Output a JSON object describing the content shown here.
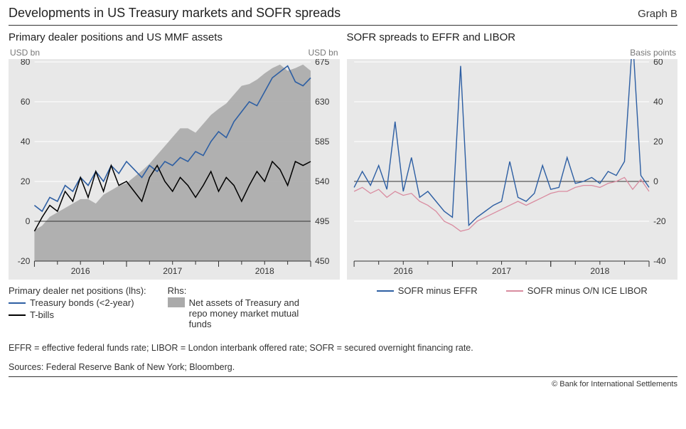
{
  "header": {
    "title": "Developments in US Treasury markets and SOFR spreads",
    "graph_label": "Graph B"
  },
  "colors": {
    "plot_bg": "#e8e8e8",
    "grid": "#ffffff",
    "zero_line": "#333333",
    "tick": "#333333",
    "text": "#333333",
    "axis_label": "#777777",
    "series_blue": "#2e5fa3",
    "series_black": "#000000",
    "series_pink": "#d98ca0",
    "area_gray": "#aaaaaa"
  },
  "typography": {
    "title_fontsize": 18,
    "subtitle_fontsize": 15,
    "tick_fontsize": 12,
    "legend_fontsize": 13,
    "footnote_fontsize": 12.5
  },
  "left_chart": {
    "subtitle": "Primary dealer positions and US MMF assets",
    "lhs_label": "USD bn",
    "rhs_label": "USD bn",
    "x_ticks": [
      "2016",
      "2017",
      "2018"
    ],
    "x_minor_ticks_per_year": 4,
    "lhs": {
      "min": -20,
      "max": 80,
      "ticks": [
        -20,
        0,
        20,
        40,
        60,
        80
      ]
    },
    "rhs": {
      "min": 450,
      "max": 675,
      "ticks": [
        450,
        495,
        540,
        585,
        630,
        675
      ]
    },
    "area_rhs": {
      "name": "Net assets of Treasury and repo money market mutual funds",
      "color": "#aaaaaa",
      "values": [
        485,
        490,
        500,
        505,
        510,
        515,
        520,
        520,
        515,
        525,
        530,
        535,
        538,
        545,
        552,
        560,
        570,
        580,
        590,
        600,
        600,
        595,
        605,
        615,
        622,
        628,
        638,
        648,
        650,
        655,
        662,
        668,
        672,
        665,
        668,
        672,
        665
      ]
    },
    "line_blue_lhs": {
      "name": "Treasury bonds (<2-year)",
      "color": "#2e5fa3",
      "line_width": 1.6,
      "values": [
        8,
        5,
        12,
        10,
        18,
        15,
        22,
        18,
        25,
        20,
        28,
        24,
        30,
        26,
        22,
        28,
        25,
        30,
        28,
        32,
        30,
        35,
        33,
        40,
        45,
        42,
        50,
        55,
        60,
        58,
        65,
        72,
        75,
        78,
        70,
        68,
        72
      ]
    },
    "line_black_lhs": {
      "name": "T-bills",
      "color": "#000000",
      "line_width": 1.5,
      "values": [
        -5,
        2,
        8,
        5,
        15,
        10,
        22,
        12,
        25,
        15,
        28,
        18,
        20,
        15,
        10,
        22,
        28,
        20,
        15,
        22,
        18,
        12,
        18,
        25,
        15,
        22,
        18,
        10,
        18,
        25,
        20,
        30,
        26,
        18,
        30,
        28,
        30
      ]
    },
    "legend": {
      "lhs_header": "Primary dealer net positions (lhs):",
      "items_lhs": [
        {
          "label": "Treasury bonds (<2-year)",
          "color": "#2e5fa3",
          "type": "line"
        },
        {
          "label": "T-bills",
          "color": "#000000",
          "type": "line"
        }
      ],
      "rhs_header": "Rhs:",
      "items_rhs": [
        {
          "label": "Net assets of Treasury and repo money market mutual funds",
          "color": "#aaaaaa",
          "type": "area"
        }
      ]
    }
  },
  "right_chart": {
    "subtitle": "SOFR spreads to EFFR and LIBOR",
    "rhs_label": "Basis points",
    "x_ticks": [
      "2016",
      "2017",
      "2018"
    ],
    "x_minor_ticks_per_year": 4,
    "y": {
      "min": -40,
      "max": 60,
      "ticks": [
        -40,
        -20,
        0,
        20,
        40,
        60
      ]
    },
    "line_pink": {
      "name": "SOFR minus O/N ICE LIBOR",
      "color": "#d98ca0",
      "line_width": 1.3,
      "values": [
        -5,
        -3,
        -6,
        -4,
        -8,
        -5,
        -7,
        -6,
        -10,
        -12,
        -15,
        -20,
        -22,
        -25,
        -24,
        -20,
        -18,
        -16,
        -14,
        -12,
        -10,
        -12,
        -10,
        -8,
        -6,
        -5,
        -5,
        -3,
        -2,
        -2,
        -3,
        -1,
        0,
        2,
        -4,
        1,
        -5
      ]
    },
    "line_blue": {
      "name": "SOFR minus EFFR",
      "color": "#2e5fa3",
      "line_width": 1.4,
      "values": [
        -3,
        5,
        -2,
        8,
        -4,
        30,
        -5,
        12,
        -8,
        -5,
        -10,
        -15,
        -18,
        58,
        -22,
        -18,
        -15,
        -12,
        -10,
        10,
        -8,
        -10,
        -6,
        8,
        -4,
        -3,
        12,
        -1,
        0,
        2,
        -1,
        5,
        3,
        10,
        72,
        3,
        -3
      ]
    },
    "legend_items": [
      {
        "label": "SOFR minus EFFR",
        "color": "#2e5fa3"
      },
      {
        "label": "SOFR minus O/N ICE LIBOR",
        "color": "#d98ca0"
      }
    ]
  },
  "footnote": "EFFR = effective federal funds rate; LIBOR = London interbank offered rate; SOFR = secured overnight financing rate.",
  "sources": "Sources: Federal Reserve Bank of New York; Bloomberg.",
  "copyright": "© Bank for International Settlements"
}
